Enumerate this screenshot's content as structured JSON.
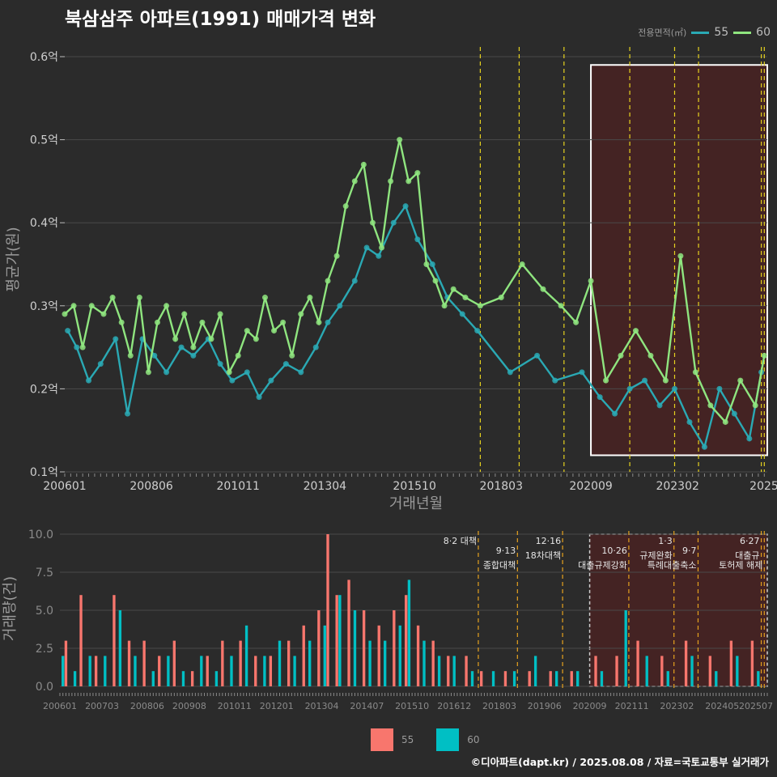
{
  "header": {
    "title": "북삼삼주 아파트(1991) 매매가격 변화"
  },
  "footer": {
    "credit": "©디아파트(dapt.kr) / 2025.08.08 / 자료=국토교통부 실거래가"
  },
  "legend_top": {
    "title": "전용면적(㎡)",
    "items": [
      {
        "label": "55",
        "color": "#2aa9b4"
      },
      {
        "label": "60",
        "color": "#8fe57f"
      }
    ]
  },
  "legend_bottom": {
    "items": [
      {
        "label": "55",
        "color": "#f8766d"
      },
      {
        "label": "60",
        "color": "#00bfc4"
      }
    ]
  },
  "chart_data": [
    {
      "type": "line",
      "ylabel": "평균가(원)",
      "xlabel": "거래년월",
      "ylim": [
        0.1,
        0.6
      ],
      "yticks": [
        {
          "value": 0.1,
          "label": "0.1억"
        },
        {
          "value": 0.2,
          "label": "0.2억"
        },
        {
          "value": 0.3,
          "label": "0.3억"
        },
        {
          "value": 0.4,
          "label": "0.4억"
        },
        {
          "value": 0.5,
          "label": "0.5억"
        },
        {
          "value": 0.6,
          "label": "0.6억"
        }
      ],
      "xticks": [
        {
          "value": "2006-01",
          "label": "200601"
        },
        {
          "value": "2008-06",
          "label": "200806"
        },
        {
          "value": "2010-11",
          "label": "201011"
        },
        {
          "value": "2013-04",
          "label": "201304"
        },
        {
          "value": "2015-10",
          "label": "201510"
        },
        {
          "value": "2018-03",
          "label": "201803"
        },
        {
          "value": "2020-09",
          "label": "202009"
        },
        {
          "value": "2023-02",
          "label": "202302"
        },
        {
          "value": "2025-07",
          "label": "2025"
        }
      ],
      "xlim": [
        "2006-01",
        "2025-08"
      ],
      "highlight": {
        "from": "2020-09",
        "to": "2025-08",
        "ylim": [
          0.12,
          0.59
        ]
      },
      "policy_lines": [
        "2017-08",
        "2018-09",
        "2019-12",
        "2021-10",
        "2023-01",
        "2023-09",
        "2025-06",
        "2025-07"
      ],
      "series": [
        {
          "name": "55",
          "color": "#2aa9b4",
          "points": [
            [
              "2006-02",
              0.27
            ],
            [
              "2006-05",
              0.25
            ],
            [
              "2006-09",
              0.21
            ],
            [
              "2007-01",
              0.23
            ],
            [
              "2007-06",
              0.26
            ],
            [
              "2007-10",
              0.17
            ],
            [
              "2008-03",
              0.26
            ],
            [
              "2008-07",
              0.24
            ],
            [
              "2008-11",
              0.22
            ],
            [
              "2009-04",
              0.25
            ],
            [
              "2009-08",
              0.24
            ],
            [
              "2010-01",
              0.26
            ],
            [
              "2010-05",
              0.23
            ],
            [
              "2010-09",
              0.21
            ],
            [
              "2011-02",
              0.22
            ],
            [
              "2011-06",
              0.19
            ],
            [
              "2011-10",
              0.21
            ],
            [
              "2012-03",
              0.23
            ],
            [
              "2012-08",
              0.22
            ],
            [
              "2013-01",
              0.25
            ],
            [
              "2013-05",
              0.28
            ],
            [
              "2013-09",
              0.3
            ],
            [
              "2014-02",
              0.33
            ],
            [
              "2014-06",
              0.37
            ],
            [
              "2014-10",
              0.36
            ],
            [
              "2015-03",
              0.4
            ],
            [
              "2015-07",
              0.42
            ],
            [
              "2015-11",
              0.38
            ],
            [
              "2016-04",
              0.35
            ],
            [
              "2016-09",
              0.31
            ],
            [
              "2017-02",
              0.29
            ],
            [
              "2017-07",
              0.27
            ],
            [
              "2018-06",
              0.22
            ],
            [
              "2019-03",
              0.24
            ],
            [
              "2019-09",
              0.21
            ],
            [
              "2020-06",
              0.22
            ],
            [
              "2020-12",
              0.19
            ],
            [
              "2021-05",
              0.17
            ],
            [
              "2021-10",
              0.2
            ],
            [
              "2022-03",
              0.21
            ],
            [
              "2022-08",
              0.18
            ],
            [
              "2023-01",
              0.2
            ],
            [
              "2023-06",
              0.16
            ],
            [
              "2023-11",
              0.13
            ],
            [
              "2024-04",
              0.2
            ],
            [
              "2024-09",
              0.17
            ],
            [
              "2025-02",
              0.14
            ],
            [
              "2025-06",
              0.22
            ]
          ]
        },
        {
          "name": "60",
          "color": "#8fe57f",
          "points": [
            [
              "2006-01",
              0.29
            ],
            [
              "2006-04",
              0.3
            ],
            [
              "2006-07",
              0.25
            ],
            [
              "2006-10",
              0.3
            ],
            [
              "2007-02",
              0.29
            ],
            [
              "2007-05",
              0.31
            ],
            [
              "2007-08",
              0.28
            ],
            [
              "2007-11",
              0.24
            ],
            [
              "2008-02",
              0.31
            ],
            [
              "2008-05",
              0.22
            ],
            [
              "2008-08",
              0.28
            ],
            [
              "2008-11",
              0.3
            ],
            [
              "2009-02",
              0.26
            ],
            [
              "2009-05",
              0.29
            ],
            [
              "2009-08",
              0.25
            ],
            [
              "2009-11",
              0.28
            ],
            [
              "2010-02",
              0.26
            ],
            [
              "2010-05",
              0.29
            ],
            [
              "2010-08",
              0.22
            ],
            [
              "2010-11",
              0.24
            ],
            [
              "2011-02",
              0.27
            ],
            [
              "2011-05",
              0.26
            ],
            [
              "2011-08",
              0.31
            ],
            [
              "2011-11",
              0.27
            ],
            [
              "2012-02",
              0.28
            ],
            [
              "2012-05",
              0.24
            ],
            [
              "2012-08",
              0.29
            ],
            [
              "2012-11",
              0.31
            ],
            [
              "2013-02",
              0.28
            ],
            [
              "2013-05",
              0.33
            ],
            [
              "2013-08",
              0.36
            ],
            [
              "2013-11",
              0.42
            ],
            [
              "2014-02",
              0.45
            ],
            [
              "2014-05",
              0.47
            ],
            [
              "2014-08",
              0.4
            ],
            [
              "2014-11",
              0.37
            ],
            [
              "2015-02",
              0.45
            ],
            [
              "2015-05",
              0.5
            ],
            [
              "2015-08",
              0.45
            ],
            [
              "2015-11",
              0.46
            ],
            [
              "2016-02",
              0.35
            ],
            [
              "2016-05",
              0.33
            ],
            [
              "2016-08",
              0.3
            ],
            [
              "2016-11",
              0.32
            ],
            [
              "2017-03",
              0.31
            ],
            [
              "2017-08",
              0.3
            ],
            [
              "2018-03",
              0.31
            ],
            [
              "2018-10",
              0.35
            ],
            [
              "2019-05",
              0.32
            ],
            [
              "2019-11",
              0.3
            ],
            [
              "2020-04",
              0.28
            ],
            [
              "2020-09",
              0.33
            ],
            [
              "2021-02",
              0.21
            ],
            [
              "2021-07",
              0.24
            ],
            [
              "2021-12",
              0.27
            ],
            [
              "2022-05",
              0.24
            ],
            [
              "2022-10",
              0.21
            ],
            [
              "2023-03",
              0.36
            ],
            [
              "2023-08",
              0.22
            ],
            [
              "2024-01",
              0.18
            ],
            [
              "2024-06",
              0.16
            ],
            [
              "2024-11",
              0.21
            ],
            [
              "2025-04",
              0.18
            ],
            [
              "2025-07",
              0.24
            ]
          ]
        }
      ]
    },
    {
      "type": "bar",
      "ylabel": "거래량(건)",
      "ylim": [
        0,
        10
      ],
      "yticks": [
        {
          "value": 0,
          "label": "0.0"
        },
        {
          "value": 2.5,
          "label": "2.5"
        },
        {
          "value": 5,
          "label": "5.0"
        },
        {
          "value": 7.5,
          "label": "7.5"
        },
        {
          "value": 10,
          "label": "10.0"
        }
      ],
      "xticks": [
        {
          "value": "2006-01",
          "label": "200601"
        },
        {
          "value": "2007-03",
          "label": "200703"
        },
        {
          "value": "2008-06",
          "label": "200806"
        },
        {
          "value": "2009-08",
          "label": "200908"
        },
        {
          "value": "2010-11",
          "label": "201011"
        },
        {
          "value": "2012-01",
          "label": "201201"
        },
        {
          "value": "2013-04",
          "label": "201304"
        },
        {
          "value": "2014-07",
          "label": "201407"
        },
        {
          "value": "2015-10",
          "label": "201510"
        },
        {
          "value": "2016-12",
          "label": "201612"
        },
        {
          "value": "2018-03",
          "label": "201803"
        },
        {
          "value": "2019-06",
          "label": "201906"
        },
        {
          "value": "2020-09",
          "label": "202009"
        },
        {
          "value": "2021-11",
          "label": "202111"
        },
        {
          "value": "2023-02",
          "label": "202302"
        },
        {
          "value": "2024-05",
          "label": "202405"
        },
        {
          "value": "2025-07",
          "label": "202507"
        }
      ],
      "xlim": [
        "2006-01",
        "2025-08"
      ],
      "highlight": {
        "from": "2020-09",
        "to": "2025-08"
      },
      "series": [
        {
          "name": "55",
          "color": "#f8766d",
          "values": [
            [
              "2006-03",
              3
            ],
            [
              "2006-08",
              6
            ],
            [
              "2007-01",
              2
            ],
            [
              "2007-07",
              6
            ],
            [
              "2007-12",
              3
            ],
            [
              "2008-05",
              3
            ],
            [
              "2008-10",
              2
            ],
            [
              "2009-03",
              3
            ],
            [
              "2009-09",
              1
            ],
            [
              "2010-02",
              2
            ],
            [
              "2010-07",
              3
            ],
            [
              "2011-01",
              3
            ],
            [
              "2011-06",
              2
            ],
            [
              "2011-11",
              2
            ],
            [
              "2012-05",
              3
            ],
            [
              "2012-10",
              4
            ],
            [
              "2013-03",
              5
            ],
            [
              "2013-06",
              10
            ],
            [
              "2013-09",
              6
            ],
            [
              "2014-01",
              7
            ],
            [
              "2014-06",
              5
            ],
            [
              "2014-11",
              4
            ],
            [
              "2015-04",
              5
            ],
            [
              "2015-08",
              6
            ],
            [
              "2015-12",
              4
            ],
            [
              "2016-05",
              3
            ],
            [
              "2016-10",
              2
            ],
            [
              "2017-04",
              2
            ],
            [
              "2017-09",
              1
            ],
            [
              "2018-05",
              1
            ],
            [
              "2019-01",
              1
            ],
            [
              "2019-08",
              1
            ],
            [
              "2020-03",
              1
            ],
            [
              "2020-11",
              2
            ],
            [
              "2021-06",
              2
            ],
            [
              "2022-01",
              3
            ],
            [
              "2022-09",
              2
            ],
            [
              "2023-05",
              3
            ],
            [
              "2024-01",
              2
            ],
            [
              "2024-08",
              3
            ],
            [
              "2025-03",
              3
            ]
          ]
        },
        {
          "name": "60",
          "color": "#00bfc4",
          "values": [
            [
              "2006-02",
              2
            ],
            [
              "2006-06",
              1
            ],
            [
              "2006-11",
              2
            ],
            [
              "2007-04",
              2
            ],
            [
              "2007-09",
              5
            ],
            [
              "2008-02",
              2
            ],
            [
              "2008-08",
              1
            ],
            [
              "2009-01",
              2
            ],
            [
              "2009-06",
              1
            ],
            [
              "2009-12",
              2
            ],
            [
              "2010-05",
              1
            ],
            [
              "2010-10",
              2
            ],
            [
              "2011-03",
              4
            ],
            [
              "2011-09",
              2
            ],
            [
              "2012-02",
              3
            ],
            [
              "2012-07",
              2
            ],
            [
              "2012-12",
              3
            ],
            [
              "2013-05",
              4
            ],
            [
              "2013-10",
              6
            ],
            [
              "2014-03",
              5
            ],
            [
              "2014-08",
              3
            ],
            [
              "2015-01",
              3
            ],
            [
              "2015-06",
              4
            ],
            [
              "2015-09",
              7
            ],
            [
              "2016-02",
              3
            ],
            [
              "2016-07",
              2
            ],
            [
              "2016-12",
              2
            ],
            [
              "2017-06",
              1
            ],
            [
              "2018-01",
              1
            ],
            [
              "2018-08",
              1
            ],
            [
              "2019-03",
              2
            ],
            [
              "2019-10",
              1
            ],
            [
              "2020-05",
              1
            ],
            [
              "2021-01",
              1
            ],
            [
              "2021-09",
              5
            ],
            [
              "2022-04",
              2
            ],
            [
              "2022-11",
              1
            ],
            [
              "2023-07",
              2
            ],
            [
              "2024-03",
              1
            ],
            [
              "2024-10",
              2
            ],
            [
              "2025-05",
              1
            ]
          ]
        }
      ],
      "annotations": [
        {
          "date": "2017-08",
          "label": "8·2 대책",
          "line2": ""
        },
        {
          "date": "2018-09",
          "label": "9·13",
          "line2": "종합대책"
        },
        {
          "date": "2019-12",
          "label": "12·16",
          "line2": "18차대책"
        },
        {
          "date": "2021-10",
          "label": "10·26",
          "line2": "대출규제강화"
        },
        {
          "date": "2023-01",
          "label": "1·3",
          "line2": "규제완화"
        },
        {
          "date": "2023-09",
          "label": "9·7",
          "line2": "특례대출축소"
        },
        {
          "date": "2025-06",
          "label": "6·27",
          "line2": "대출규"
        },
        {
          "date": "2025-07",
          "label": "",
          "line2": "토허제 해제"
        }
      ]
    }
  ]
}
